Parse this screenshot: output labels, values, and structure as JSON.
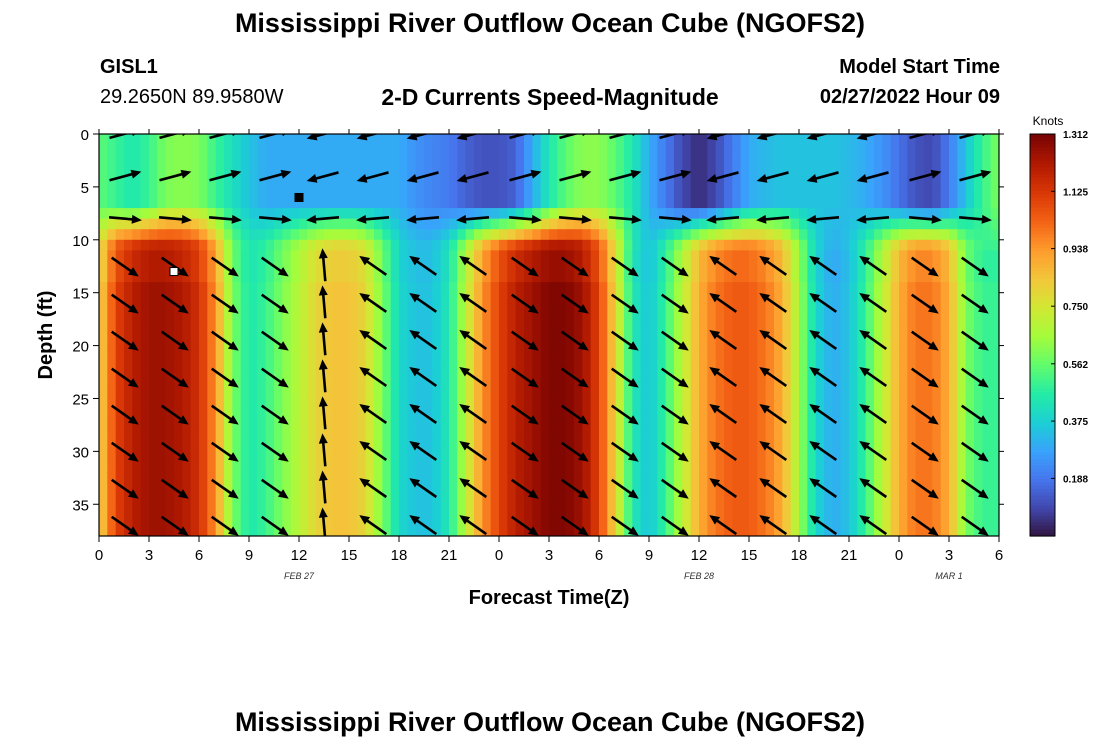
{
  "page": {
    "title_top": "Mississippi River Outflow Ocean Cube (NGOFS2)",
    "title_bottom": "Mississippi River Outflow Ocean Cube (NGOFS2)",
    "station_name": "GISL1",
    "station_coords": "29.2650N  89.9580W",
    "model_start_label": "Model Start Time",
    "model_start_value": "02/27/2022 Hour 09"
  },
  "chart_data": {
    "type": "heatmap",
    "title": "2-D Currents Speed-Magnitude",
    "xlabel": "Forecast Time(Z)",
    "ylabel": "Depth (ft)",
    "x_range_hours": [
      0,
      54
    ],
    "y_range_ft": [
      0,
      38
    ],
    "y_inverted": true,
    "x_tick_labels": [
      "0",
      "3",
      "6",
      "9",
      "12",
      "15",
      "18",
      "21",
      "0",
      "3",
      "6",
      "9",
      "12",
      "15",
      "18",
      "21",
      "0",
      "3",
      "6"
    ],
    "y_tick_labels": [
      "0",
      "5",
      "10",
      "15",
      "20",
      "25",
      "30",
      "35"
    ],
    "date_labels": [
      {
        "text": "FEB 27",
        "hour": 12
      },
      {
        "text": "FEB 28",
        "hour": 36
      },
      {
        "text": "MAR 1",
        "hour": 51
      }
    ],
    "colorbar": {
      "label": "Knots",
      "range": [
        0,
        1.312
      ],
      "ticks": [
        "1.312",
        "1.125",
        "0.938",
        "0.750",
        "0.562",
        "0.375",
        "0.188"
      ],
      "colors": [
        "#30123b",
        "#4145ab",
        "#4675ed",
        "#39a2fc",
        "#1bcfd4",
        "#24eca6",
        "#61fc6c",
        "#a4fc3b",
        "#d1e834",
        "#f3c63a",
        "#fe9b2d",
        "#f36315",
        "#d93806",
        "#b11901",
        "#7a0403"
      ]
    },
    "speed_knots": {
      "hours": [
        0,
        1,
        2,
        3,
        4,
        5,
        6,
        7,
        8,
        9,
        10,
        11,
        12,
        13,
        14,
        15,
        16,
        17,
        18,
        19,
        20,
        21,
        22,
        23,
        24,
        25,
        26,
        27,
        28,
        29,
        30,
        31,
        32,
        33,
        34,
        35,
        36,
        37,
        38,
        39,
        40,
        41,
        42,
        43,
        44,
        45,
        46,
        47,
        48,
        49,
        50,
        51,
        52,
        53,
        54
      ],
      "upper_4ft": [
        0.55,
        0.5,
        0.45,
        0.5,
        0.6,
        0.62,
        0.6,
        0.5,
        0.42,
        0.35,
        0.3,
        0.3,
        0.3,
        0.3,
        0.3,
        0.3,
        0.3,
        0.3,
        0.3,
        0.25,
        0.22,
        0.2,
        0.15,
        0.12,
        0.12,
        0.15,
        0.3,
        0.45,
        0.55,
        0.62,
        0.62,
        0.55,
        0.45,
        0.3,
        0.2,
        0.1,
        0.05,
        0.1,
        0.2,
        0.3,
        0.33,
        0.35,
        0.35,
        0.35,
        0.35,
        0.33,
        0.3,
        0.25,
        0.18,
        0.12,
        0.1,
        0.2,
        0.35,
        0.5,
        0.6
      ],
      "lower_25ft": [
        0.8,
        1.1,
        1.2,
        1.25,
        1.25,
        1.22,
        1.15,
        0.95,
        0.6,
        0.45,
        0.5,
        0.6,
        0.7,
        0.8,
        0.85,
        0.85,
        0.8,
        0.6,
        0.4,
        0.35,
        0.35,
        0.45,
        0.7,
        0.95,
        1.1,
        1.2,
        1.25,
        1.3,
        1.3,
        1.25,
        1.1,
        0.8,
        0.45,
        0.35,
        0.5,
        0.7,
        0.9,
        1.0,
        1.05,
        1.05,
        1.0,
        0.9,
        0.65,
        0.4,
        0.3,
        0.35,
        0.5,
        0.7,
        0.9,
        1.0,
        1.0,
        0.9,
        0.6,
        0.5,
        0.5
      ]
    },
    "markers": [
      {
        "hour": 12.0,
        "depth_ft": 6,
        "color": "#000000"
      },
      {
        "hour": 4.5,
        "depth_ft": 13,
        "color": "#ffffff"
      }
    ]
  }
}
